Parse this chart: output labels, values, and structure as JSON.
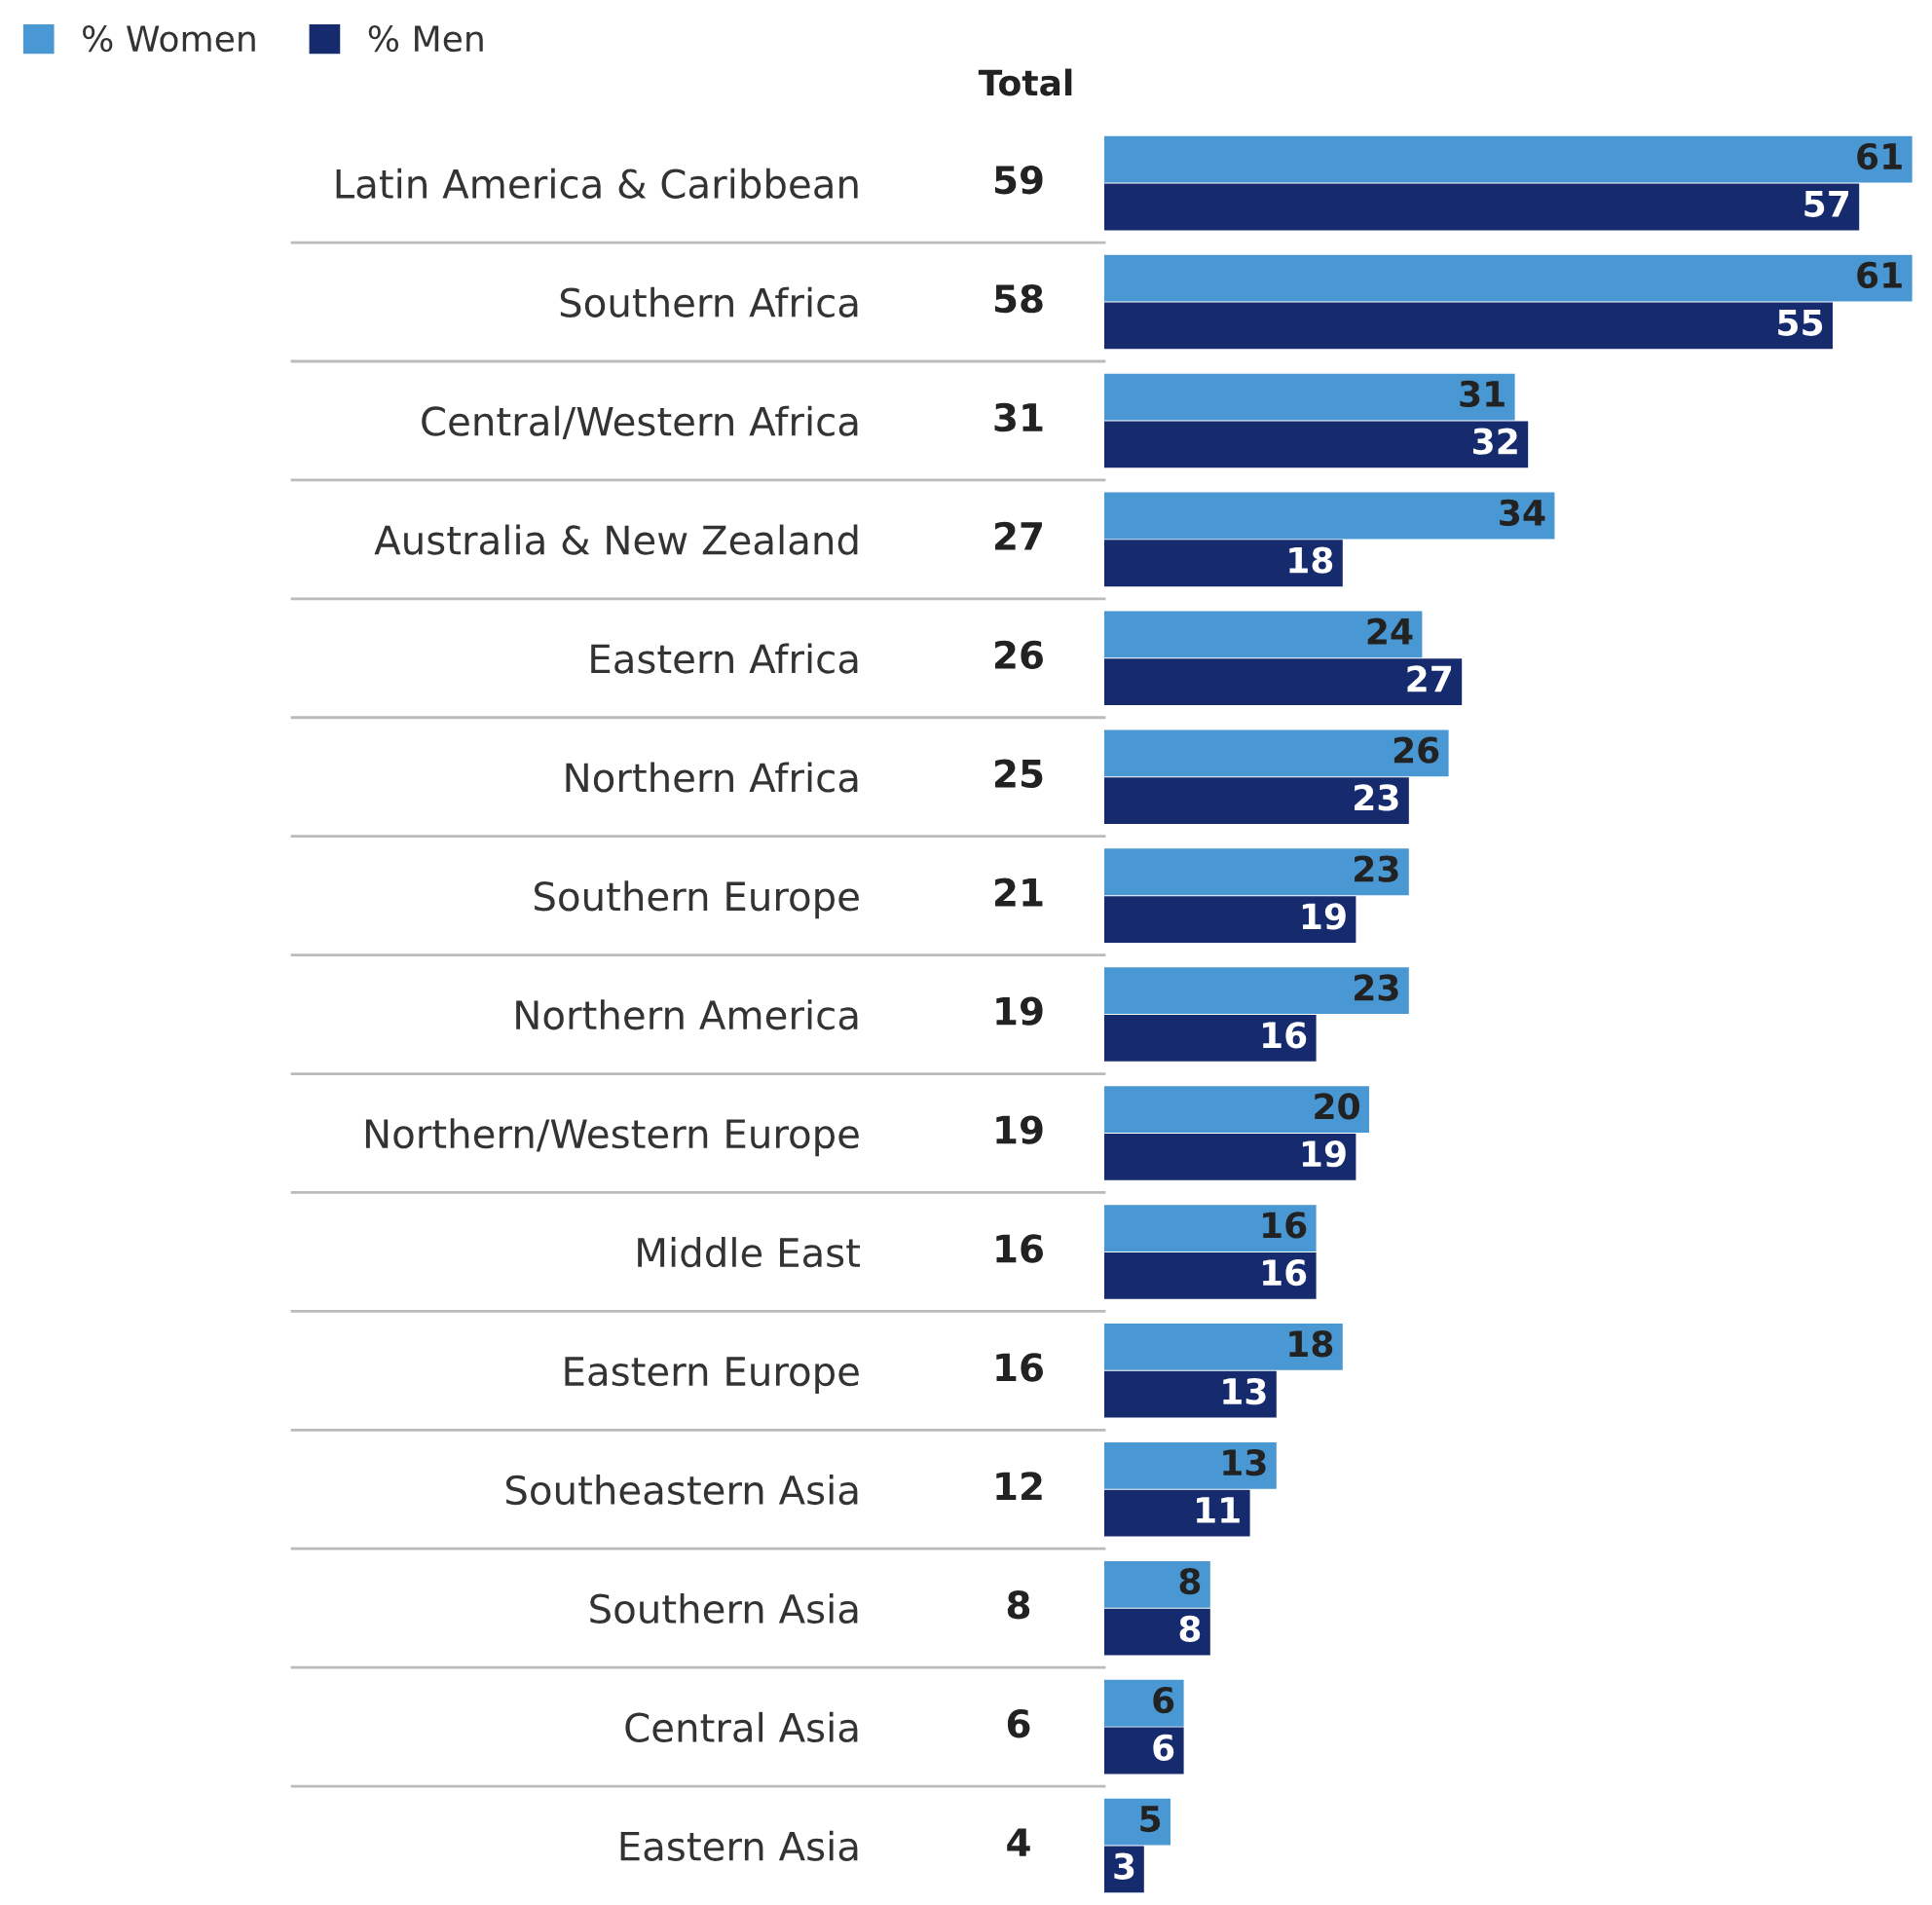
{
  "chart_data": {
    "type": "bar",
    "orientation": "horizontal",
    "categories": [
      "Latin America & Caribbean",
      "Southern Africa",
      "Central/Western Africa",
      "Australia & New Zealand",
      "Eastern Africa",
      "Northern Africa",
      "Southern Europe",
      "Northern America",
      "Northern/Western Europe",
      "Middle East",
      "Eastern Europe",
      "Southeastern Asia",
      "Southern Asia",
      "Central Asia",
      "Eastern Asia"
    ],
    "series": [
      {
        "name": "% Women",
        "color": "#4a98d3",
        "values": [
          61,
          61,
          31,
          34,
          24,
          26,
          23,
          23,
          20,
          16,
          18,
          13,
          8,
          6,
          5
        ]
      },
      {
        "name": "% Men",
        "color": "#162a6e",
        "values": [
          57,
          55,
          32,
          18,
          27,
          23,
          19,
          16,
          19,
          16,
          13,
          11,
          8,
          6,
          3
        ]
      }
    ],
    "annotations": [
      "Total",
      "59",
      "58",
      "31",
      "27",
      "26",
      "25",
      "21",
      "19",
      "19",
      "16",
      "16",
      "12",
      "8",
      "6",
      "4"
    ],
    "data_labels": true,
    "legend": "top left",
    "grid": false
  }
}
